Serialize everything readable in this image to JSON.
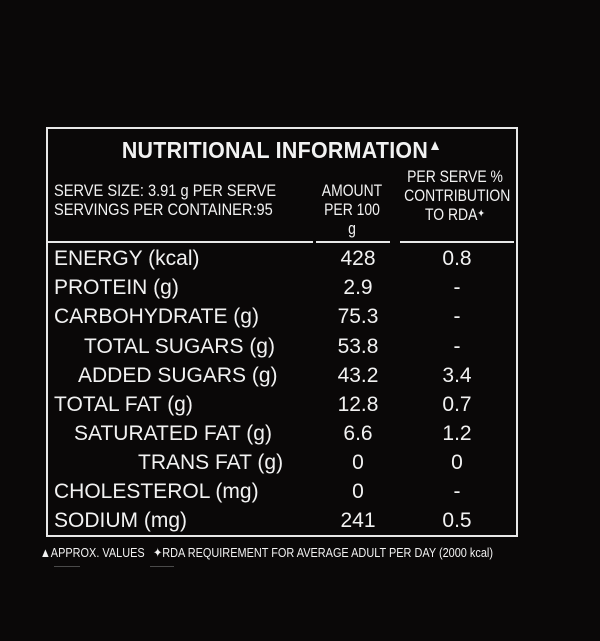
{
  "title": "NUTRITIONAL INFORMATION",
  "title_mark": "▲",
  "serve_size": "SERVE SIZE: 3.91 g PER SERVE",
  "servings": "SERVINGS PER CONTAINER:95",
  "col_amount_1": "AMOUNT",
  "col_amount_2": "PER 100 g",
  "col_rda_1": "PER SERVE %",
  "col_rda_2": "CONTRIBUTION",
  "col_rda_3": "TO RDA",
  "col_rda_mark": "✦",
  "rows": [
    {
      "name": "ENERGY (kcal)",
      "amount": "428",
      "rda": "0.8"
    },
    {
      "name": "PROTEIN (g)",
      "amount": "2.9",
      "rda": "-"
    },
    {
      "name": "CARBOHYDRATE (g)",
      "amount": "75.3",
      "rda": "-"
    },
    {
      "name": "TOTAL SUGARS (g)",
      "amount": "53.8",
      "rda": "-"
    },
    {
      "name": "ADDED SUGARS (g)",
      "amount": "43.2",
      "rda": "3.4"
    },
    {
      "name": "TOTAL FAT (g)",
      "amount": "12.8",
      "rda": "0.7"
    },
    {
      "name": "SATURATED FAT (g)",
      "amount": "6.6",
      "rda": "1.2"
    },
    {
      "name": "TRANS FAT (g)",
      "amount": "0",
      "rda": "0"
    },
    {
      "name": "CHOLESTEROL (mg)",
      "amount": "0",
      "rda": "-"
    },
    {
      "name": "SODIUM (mg)",
      "amount": "241",
      "rda": "0.5"
    }
  ],
  "footnote_1": "▲APPROX. VALUES",
  "footnote_2": "✦RDA REQUIREMENT FOR AVERAGE ADULT PER DAY (2000 kcal)"
}
